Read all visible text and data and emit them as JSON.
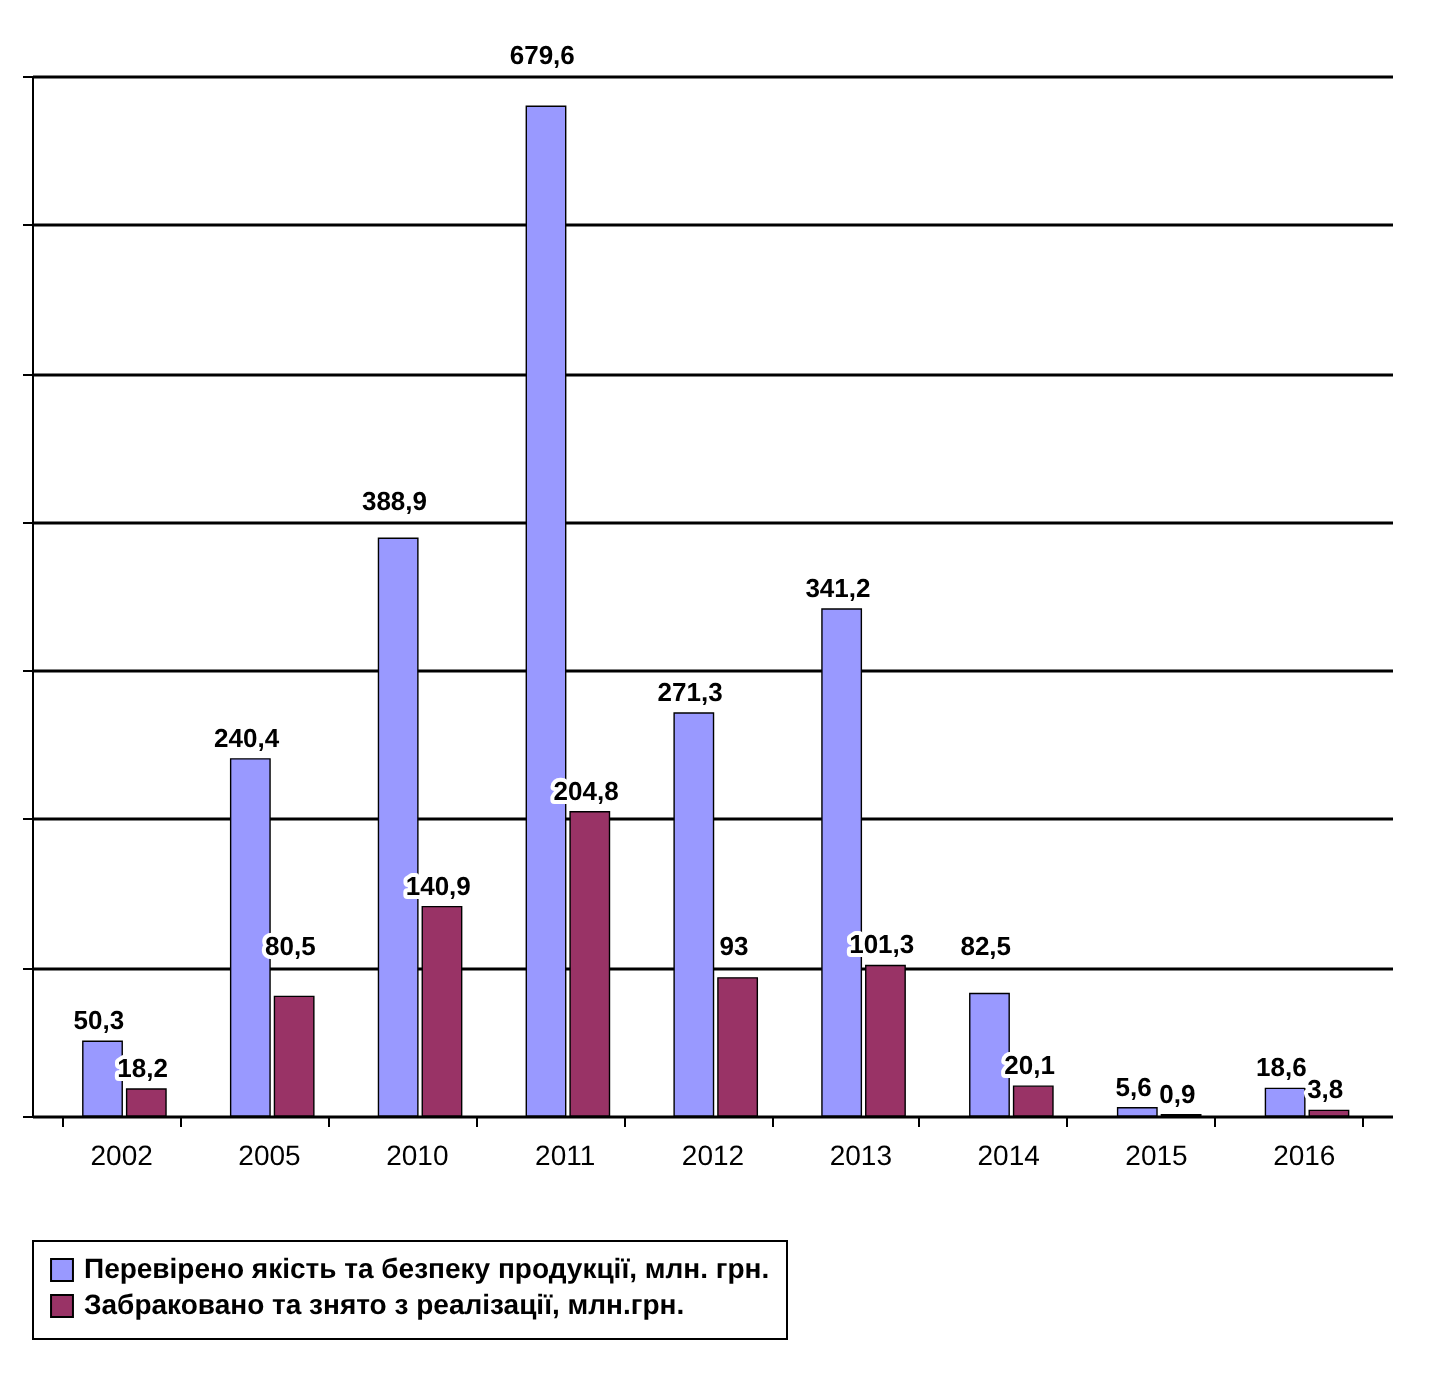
{
  "chart_data": {
    "type": "bar",
    "categories": [
      "2002",
      "2005",
      "2010",
      "2011",
      "2012",
      "2013",
      "2014",
      "2015",
      "2016"
    ],
    "series": [
      {
        "name": "Перевірено якість та безпеку продукції, млн. грн.",
        "color": "#9999ff",
        "values": [
          50.3,
          240.4,
          388.9,
          679.6,
          271.3,
          341.2,
          82.5,
          5.6,
          18.6
        ],
        "value_labels": [
          "50,3",
          "240,4",
          "388,9",
          "679,6",
          "271,3",
          "341,2",
          "82,5",
          "5,6",
          "18,6"
        ]
      },
      {
        "name": "Забраковано та знято з реалізації, млн.грн.",
        "color": "#993366",
        "values": [
          18.2,
          80.5,
          140.9,
          204.8,
          93,
          101.3,
          20.1,
          0.9,
          3.8
        ],
        "value_labels": [
          "18,2",
          "80,5",
          "140,9",
          "204,8",
          "93",
          "101,3",
          "20,1",
          "0,9",
          "3,8"
        ]
      }
    ],
    "ylim": [
      0,
      700
    ],
    "yticks": [
      {
        "value": 0,
        "label": null
      },
      {
        "value": 100,
        "label": null
      },
      {
        "value": 200,
        "label": null
      },
      {
        "value": 300,
        "label": null
      },
      {
        "value": 400,
        "label": null
      },
      {
        "value": 500,
        "label": null
      },
      {
        "value": 600,
        "label": null
      },
      {
        "value": 700,
        "label": null
      }
    ],
    "grid": "y",
    "legend": "bottom",
    "tick_labels": "x"
  }
}
